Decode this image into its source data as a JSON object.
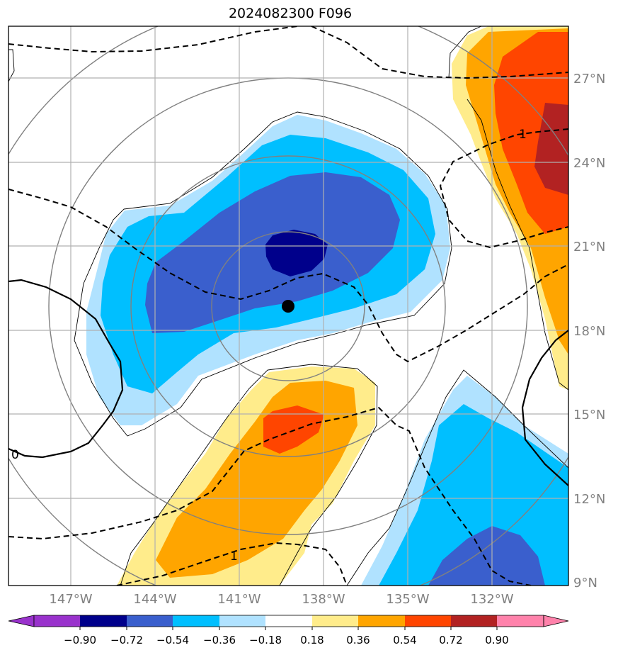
{
  "title": "2024082300 F096",
  "map": {
    "type": "contour-map",
    "lat_labels": [
      "27°N",
      "24°N",
      "21°N",
      "18°N",
      "15°N",
      "12°N",
      "9°N"
    ],
    "lon_labels": [
      "147°W",
      "144°W",
      "141°W",
      "138°W",
      "135°W",
      "132°W"
    ],
    "lat_range": [
      9,
      29
    ],
    "lon_range": [
      -149.8,
      -129.8
    ],
    "storm_center": {
      "lat": 18.9,
      "lon": -139.5
    },
    "contour_labels": [
      "1",
      "1",
      "0"
    ],
    "grid": true
  },
  "colorbar": {
    "ticks": [
      "−0.90",
      "−0.72",
      "−0.54",
      "−0.36",
      "−0.18",
      "0.18",
      "0.36",
      "0.54",
      "0.72",
      "0.90"
    ],
    "colors": [
      "#9932cc",
      "#00008b",
      "#3a5fcd",
      "#00bfff",
      "#b0e2ff",
      "#ffffff",
      "#ffec8b",
      "#ffa500",
      "#ff4500",
      "#b22222",
      "#ff82ab"
    ]
  }
}
